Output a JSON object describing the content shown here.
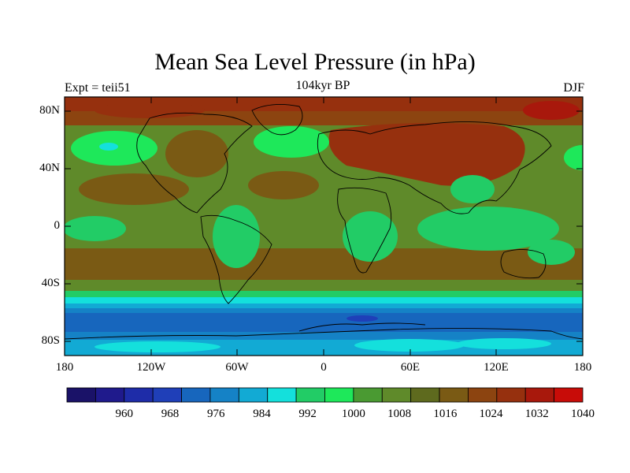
{
  "map": {
    "title": "Mean Sea Level Pressure (in hPa)",
    "subtitle": "104kyr BP",
    "left_label": "Expt = teii51",
    "right_label": "DJF",
    "lat_ticks": [
      "80N",
      "40N",
      "0",
      "40S",
      "80S"
    ],
    "lon_ticks": [
      "180",
      "120W",
      "60W",
      "0",
      "60E",
      "120E",
      "180"
    ],
    "colorbar": {
      "labels": [
        "960",
        "968",
        "976",
        "984",
        "992",
        "1000",
        "1008",
        "1016",
        "1024",
        "1032",
        "1040"
      ],
      "colors": [
        "#1a1268",
        "#1f1a8c",
        "#1e2ca8",
        "#1f3fb8",
        "#1766bd",
        "#1582c6",
        "#12aad4",
        "#14e0dc",
        "#22cc66",
        "#1ee85a",
        "#4a9a32",
        "#5f8a2a",
        "#5e6a1e",
        "#7a5a14",
        "#8c4410",
        "#96300e",
        "#a8180c",
        "#c80c08"
      ]
    },
    "land_color": "#000000"
  }
}
